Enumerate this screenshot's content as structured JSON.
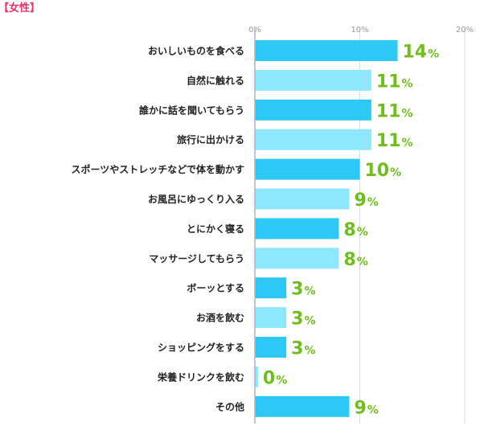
{
  "header": {
    "title": "【女性】"
  },
  "colors": {
    "title": "#e8336b",
    "bar_a": "#2ec8f5",
    "bar_b": "#8ee8fd",
    "value": "#6fbf1c",
    "grid": "#dddddd",
    "axis": "#b4b4b4",
    "tick_text": "#999999",
    "category_text": "#222222"
  },
  "chart_data": {
    "type": "bar",
    "orientation": "horizontal",
    "title": "【女性】",
    "xlabel": "",
    "ylabel": "",
    "xlim": [
      0,
      20
    ],
    "ticks": [
      {
        "value": 0,
        "label": "0%"
      },
      {
        "value": 10,
        "label": "10%"
      },
      {
        "value": 20,
        "label": "20%"
      }
    ],
    "grid": true,
    "categories": [
      "おいしいものを食べる",
      "自然に触れる",
      "誰かに話を聞いてもらう",
      "旅行に出かける",
      "スポーツやストレッチなどで体を動かす",
      "お風呂にゆっくり入る",
      "とにかく寝る",
      "マッサージしてもらう",
      "ボーッとする",
      "お酒を飲む",
      "ショッピングをする",
      "栄養ドリンクを飲む",
      "その他"
    ],
    "values": [
      13.6,
      11.1,
      11.1,
      11.1,
      10.0,
      9.0,
      8.0,
      8.0,
      3.0,
      3.0,
      3.0,
      0.3,
      9.0
    ],
    "labels": [
      "14",
      "11",
      "11",
      "11",
      "10",
      "9",
      "8",
      "8",
      "3",
      "3",
      "3",
      "0",
      "9"
    ],
    "unit": "%"
  }
}
